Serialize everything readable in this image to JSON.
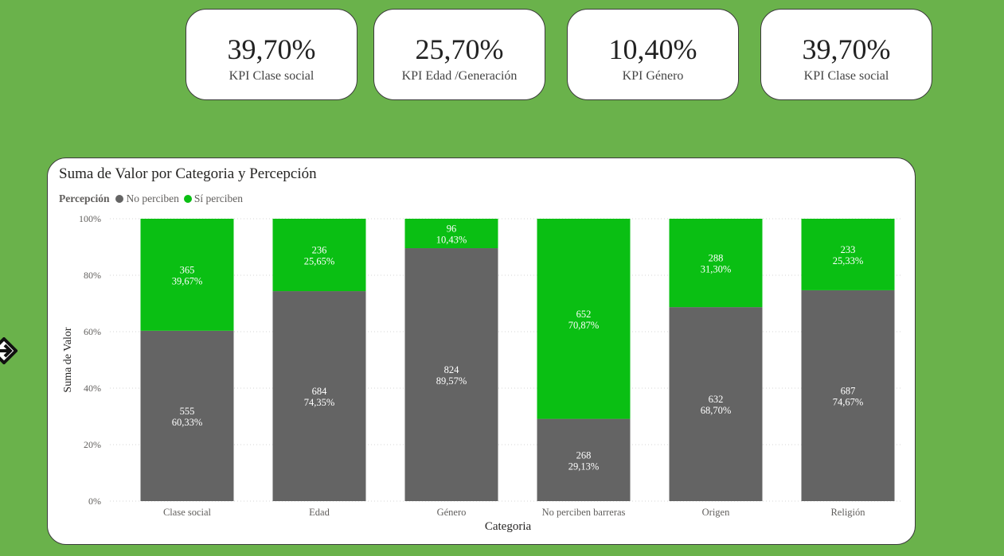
{
  "kpis": [
    {
      "value": "39,70%",
      "label": "KPI Clase social"
    },
    {
      "value": "25,70%",
      "label": "KPI Edad /Generación"
    },
    {
      "value": "10,40%",
      "label": "KPI Género"
    },
    {
      "value": "39,70%",
      "label": "KPI Clase social"
    }
  ],
  "colors": {
    "background": "#6ab24b",
    "no_perciben": "#646464",
    "si_perciben": "#0abf13"
  },
  "chart_data": {
    "type": "bar",
    "stacked": "100%",
    "title": "Suma de Valor por Categoria y Percepción",
    "xlabel": "Categoria",
    "ylabel": "Suma de Valor",
    "ylim": [
      0,
      100
    ],
    "yticks": [
      "0%",
      "20%",
      "40%",
      "60%",
      "80%",
      "100%"
    ],
    "legend_title": "Percepción",
    "legend_position": "top-left",
    "categories": [
      "Clase social",
      "Edad",
      "Género",
      "No perciben barreras",
      "Origen",
      "Religión"
    ],
    "series": [
      {
        "name": "No perciben",
        "values": [
          555,
          684,
          824,
          268,
          632,
          687
        ],
        "percents": [
          60.33,
          74.35,
          89.57,
          29.13,
          68.7,
          74.67
        ],
        "labels": [
          "60,33%",
          "74,35%",
          "89,57%",
          "29,13%",
          "68,70%",
          "74,67%"
        ]
      },
      {
        "name": "Sí perciben",
        "values": [
          365,
          236,
          96,
          652,
          288,
          233
        ],
        "percents": [
          39.67,
          25.65,
          10.43,
          70.87,
          31.3,
          25.33
        ],
        "labels": [
          "39,67%",
          "25,65%",
          "10,43%",
          "70,87%",
          "31,30%",
          "25,33%"
        ]
      }
    ]
  }
}
